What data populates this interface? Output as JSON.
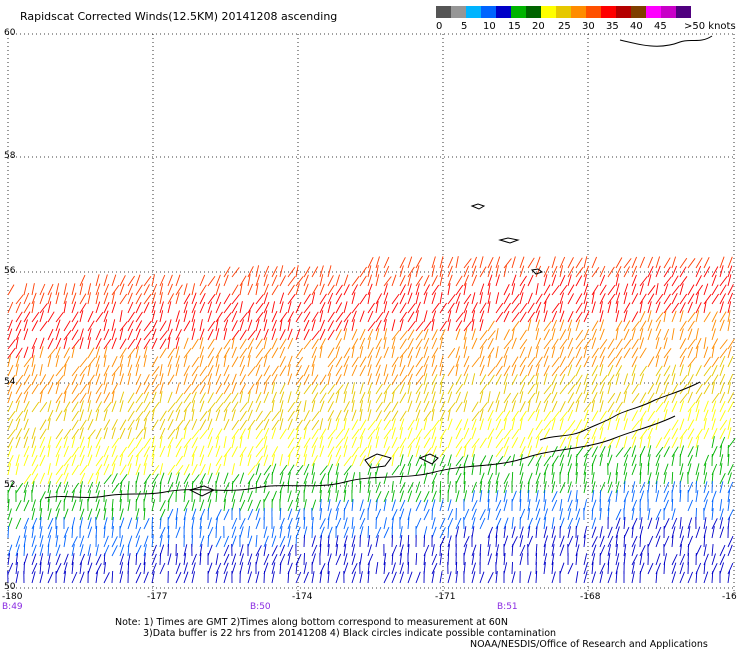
{
  "title": "Rapidscat Corrected Winds(12.5KM) 20141208 ascending",
  "legend": {
    "colors": [
      "#555555",
      "#969696",
      "#00b4ff",
      "#0064ff",
      "#0000c8",
      "#00b400",
      "#006400",
      "#ffff00",
      "#e6c800",
      "#ff8c00",
      "#ff5000",
      "#ff0000",
      "#b40000",
      "#7f3f00",
      "#ff00ff",
      "#c800c8",
      "#50007f"
    ],
    "labels": [
      "0",
      "5",
      "10",
      "15",
      "20",
      "25",
      "30",
      "35",
      "40",
      "45",
      ">50 knots"
    ]
  },
  "lat_labels": [
    "60",
    "58",
    "56",
    "54",
    "52",
    "50"
  ],
  "lon_labels": [
    "-180",
    "-177",
    "-174",
    "-171",
    "-168",
    "-16"
  ],
  "time_labels": [
    "B:49",
    "B:50",
    "B:51"
  ],
  "note_line1": "Note: 1) Times are GMT 2)Times along bottom correspond to measurement at 60N",
  "note_line2": "3)Data buffer is 22 hrs from 20141208 4) Black circles indicate possible contamination",
  "credit": "NOAA/NESDIS/Office of Research and Applications"
}
